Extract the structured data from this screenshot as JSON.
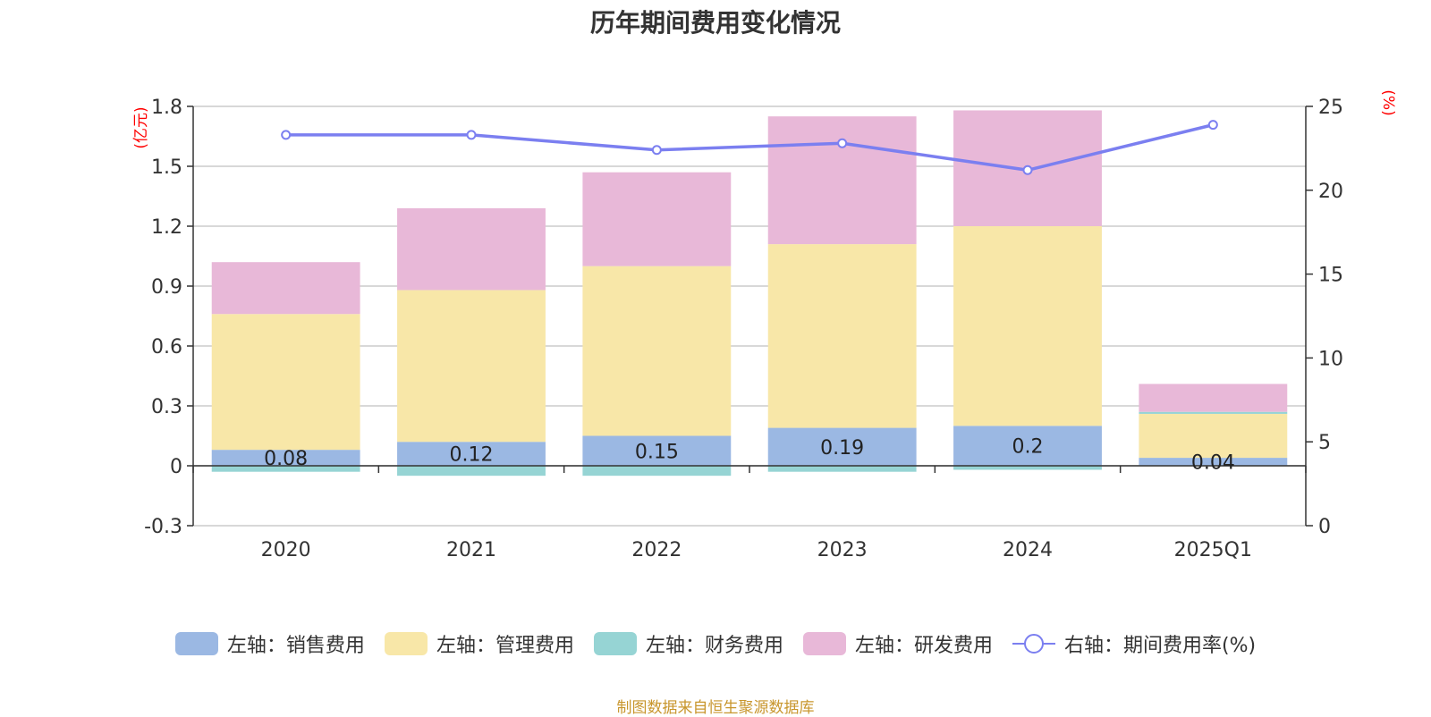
{
  "chart_data": {
    "type": "bar",
    "title": "历年期间费用变化情况",
    "categories": [
      "2020",
      "2021",
      "2022",
      "2023",
      "2024",
      "2025Q1"
    ],
    "left_axis": {
      "unit_label": "(亿元)",
      "ylim": [
        -0.3,
        1.8
      ],
      "ticks": [
        "-0.3",
        "0",
        "0.3",
        "0.6",
        "0.9",
        "1.2",
        "1.5",
        "1.8"
      ]
    },
    "right_axis": {
      "unit_label": "(%)",
      "ylim": [
        0,
        25
      ],
      "ticks": [
        "0",
        "5",
        "10",
        "15",
        "20",
        "25"
      ]
    },
    "series": [
      {
        "name": "左轴：销售费用",
        "kind": "bar",
        "stack": "total",
        "color": "#9bb8e3",
        "values": [
          0.08,
          0.12,
          0.15,
          0.19,
          0.2,
          0.04
        ],
        "labels": [
          "0.08",
          "0.12",
          "0.15",
          "0.19",
          "0.2",
          "0.04"
        ]
      },
      {
        "name": "左轴：管理费用",
        "kind": "bar",
        "stack": "total",
        "color": "#f8e7a8",
        "values": [
          0.68,
          0.76,
          0.85,
          0.92,
          1.0,
          0.22
        ]
      },
      {
        "name": "左轴：财务费用",
        "kind": "bar",
        "stack": "total",
        "color": "#96d4d4",
        "values": [
          -0.03,
          -0.05,
          -0.05,
          -0.03,
          -0.02,
          0.01
        ]
      },
      {
        "name": "左轴：研发费用",
        "kind": "bar",
        "stack": "total",
        "color": "#e8b8d8",
        "values": [
          0.26,
          0.41,
          0.47,
          0.64,
          0.58,
          0.14
        ]
      },
      {
        "name": "右轴：期间费用率(%)",
        "kind": "line",
        "axis": "right",
        "color": "#7b7ff0",
        "values": [
          23.3,
          23.3,
          22.4,
          22.8,
          21.2,
          23.9
        ]
      }
    ]
  },
  "source_note": "制图数据来自恒生聚源数据库"
}
